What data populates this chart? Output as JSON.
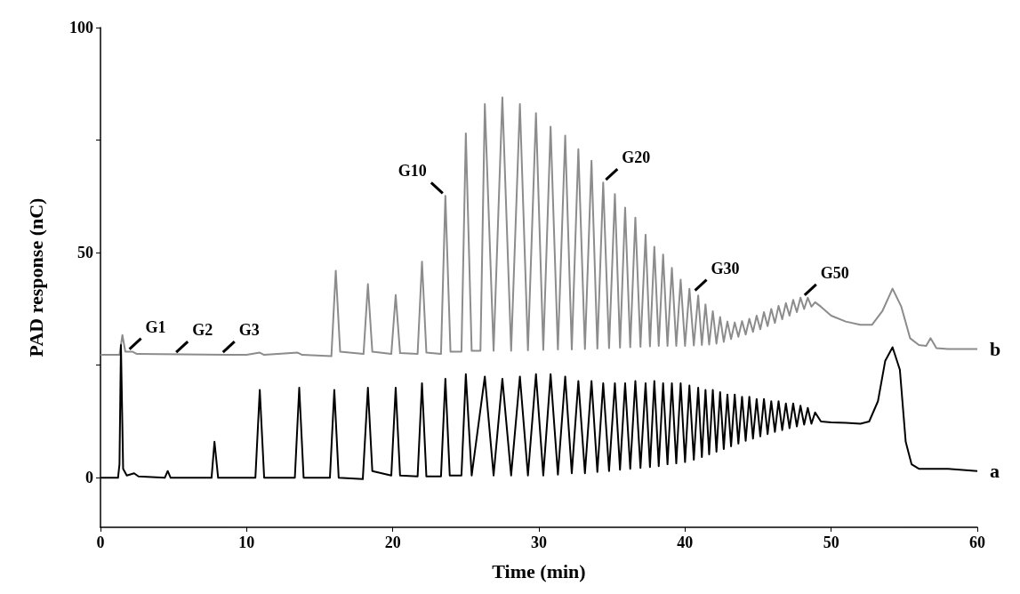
{
  "chart_data": {
    "type": "line",
    "xlabel": "Time (min)",
    "ylabel": "PAD response (nC)",
    "xlim": [
      0,
      60
    ],
    "xticks": [
      0,
      10,
      20,
      30,
      40,
      50,
      60
    ],
    "ylim": [
      -11,
      100
    ],
    "yticks": [
      0,
      {
        "value": 25,
        "label": null
      },
      50,
      {
        "value": 75,
        "label": null
      },
      100
    ],
    "grid": false,
    "legend": false,
    "marker": "none",
    "line_style": "solid",
    "annotations": [
      {
        "text": "G1",
        "x": 1.8,
        "y": 28
      },
      {
        "text": "G2",
        "x": 5,
        "y": 27.3
      },
      {
        "text": "G3",
        "x": 8.2,
        "y": 27.3
      },
      {
        "text": "G10",
        "x": 23.6,
        "y": 62.6
      },
      {
        "text": "G20",
        "x": 34.4,
        "y": 65.6
      },
      {
        "text": "G30",
        "x": 40.5,
        "y": 41
      },
      {
        "text": "G50",
        "x": 48,
        "y": 40
      }
    ],
    "series": [
      {
        "name": "b",
        "color": "#8c8c8c",
        "x": [
          0,
          1.3,
          1.5,
          1.7,
          2.2,
          2.5,
          10,
          10.9,
          11.2,
          13.5,
          13.8,
          15.8,
          16.1,
          16.4,
          18.0,
          18.3,
          18.6,
          19.9,
          20.2,
          20.5,
          21.7,
          22.0,
          22.3,
          23.3,
          23.6,
          23.95,
          24.7,
          25.0,
          25.4,
          26.0,
          26.3,
          26.9,
          27.5,
          28.1,
          28.7,
          29.25,
          29.8,
          30.3,
          30.8,
          31.3,
          31.8,
          32.25,
          32.7,
          33.15,
          33.6,
          34.0,
          34.4,
          34.8,
          35.2,
          35.55,
          35.9,
          36.25,
          36.6,
          36.95,
          37.3,
          37.6,
          37.9,
          38.2,
          38.5,
          38.8,
          39.1,
          39.4,
          39.7,
          40.0,
          40.3,
          40.6,
          40.9,
          41.15,
          41.4,
          41.65,
          41.9,
          42.15,
          42.4,
          42.65,
          42.9,
          43.15,
          43.4,
          43.65,
          43.9,
          44.15,
          44.4,
          44.65,
          44.9,
          45.15,
          45.4,
          45.65,
          45.9,
          46.15,
          46.4,
          46.65,
          46.9,
          47.15,
          47.4,
          47.65,
          47.9,
          48.15,
          48.4,
          48.65,
          48.9,
          49.3,
          50,
          51,
          52,
          52.8,
          53.5,
          54.2,
          54.8,
          55.4,
          56,
          56.5,
          56.8,
          57.2,
          58,
          60
        ],
        "values": [
          27.3,
          27.3,
          31.7,
          28,
          28,
          27.5,
          27.3,
          27.8,
          27.3,
          27.8,
          27.3,
          27,
          46,
          28,
          27.5,
          43,
          28,
          27.5,
          40.6,
          27.7,
          27.5,
          48,
          27.8,
          27.5,
          62.6,
          28,
          28,
          76.5,
          28.2,
          28.2,
          83,
          28.2,
          84.5,
          28.2,
          83,
          28.3,
          81,
          28.4,
          78,
          28.5,
          76,
          28.5,
          73,
          28.6,
          70.4,
          28.7,
          65.6,
          28.8,
          63,
          28.9,
          60,
          29,
          57.8,
          29.1,
          54,
          29.2,
          51.3,
          29.3,
          49.6,
          29.3,
          46.6,
          29.3,
          44,
          29.3,
          42,
          29.4,
          40.5,
          29.5,
          38.5,
          29.6,
          37,
          29.8,
          35.7,
          30.2,
          34.7,
          30.8,
          34.5,
          31.3,
          34.8,
          31.8,
          35.3,
          32.4,
          36,
          33,
          36.8,
          33.7,
          37.5,
          34.4,
          38.2,
          35.2,
          38.8,
          36,
          39.5,
          36.8,
          40,
          37.5,
          40,
          38,
          39,
          38,
          36,
          34.7,
          34,
          34,
          37,
          42,
          38,
          31,
          29.5,
          29.3,
          31,
          28.8,
          28.6,
          28.6
        ]
      },
      {
        "name": "a",
        "color": "#000000",
        "x": [
          0,
          1.2,
          1.3,
          1.4,
          1.55,
          1.8,
          2.3,
          2.6,
          4.4,
          4.6,
          4.8,
          7.6,
          7.8,
          8.05,
          10.6,
          10.9,
          11.2,
          13.3,
          13.6,
          13.9,
          15.7,
          16.0,
          16.3,
          17.95,
          18.3,
          18.6,
          19.9,
          20.2,
          20.5,
          21.7,
          22.0,
          22.3,
          23.3,
          23.6,
          23.9,
          24.7,
          25.0,
          25.4,
          26.3,
          26.9,
          27.5,
          28.1,
          28.7,
          29.25,
          29.8,
          30.3,
          30.8,
          31.3,
          31.8,
          32.25,
          32.7,
          33.15,
          33.6,
          34.0,
          34.4,
          34.8,
          35.2,
          35.55,
          35.9,
          36.25,
          36.6,
          36.95,
          37.3,
          37.6,
          37.9,
          38.2,
          38.5,
          38.8,
          39.1,
          39.4,
          39.7,
          40.0,
          40.3,
          40.6,
          40.9,
          41.15,
          41.4,
          41.65,
          41.9,
          42.15,
          42.4,
          42.65,
          42.9,
          43.15,
          43.4,
          43.65,
          43.9,
          44.15,
          44.4,
          44.65,
          44.9,
          45.15,
          45.4,
          45.65,
          45.9,
          46.15,
          46.4,
          46.65,
          46.9,
          47.15,
          47.4,
          47.65,
          47.9,
          48.15,
          48.4,
          48.65,
          48.9,
          49.3,
          50,
          51,
          52,
          52.6,
          53.2,
          53.7,
          54.2,
          54.7,
          55.1,
          55.5,
          56,
          58,
          60
        ],
        "values": [
          0,
          0,
          3,
          29.5,
          2,
          0.5,
          1,
          0.3,
          0,
          1.5,
          0,
          0,
          8,
          0,
          0,
          19.5,
          0,
          0,
          20,
          0,
          0,
          19.5,
          0,
          -0.3,
          20,
          1.5,
          0.5,
          20,
          0.5,
          0.3,
          21,
          0.3,
          0.3,
          22,
          0.5,
          0.5,
          23,
          0.5,
          22.5,
          0.5,
          22,
          0.5,
          22.5,
          0.5,
          23,
          0.5,
          23,
          0.7,
          22.5,
          1,
          21.5,
          1,
          21.5,
          1.3,
          21,
          1.5,
          21,
          1.8,
          21,
          2,
          21.5,
          2.2,
          21,
          2.4,
          21.5,
          2.6,
          21,
          3,
          21,
          3.2,
          21,
          3.5,
          20.5,
          4,
          20,
          4.6,
          19.5,
          5.2,
          19.5,
          5.8,
          19,
          6.4,
          18.5,
          7,
          18.5,
          7.6,
          18,
          8.2,
          18,
          8.7,
          17.5,
          9.2,
          17.5,
          9.7,
          17,
          10.2,
          17,
          10.6,
          16.5,
          11,
          16.5,
          11.4,
          16,
          11.8,
          15.5,
          12,
          14.5,
          12.5,
          12.3,
          12.2,
          12,
          12.5,
          17,
          26,
          29,
          24,
          8,
          3,
          2,
          2,
          1.5
        ]
      }
    ]
  }
}
